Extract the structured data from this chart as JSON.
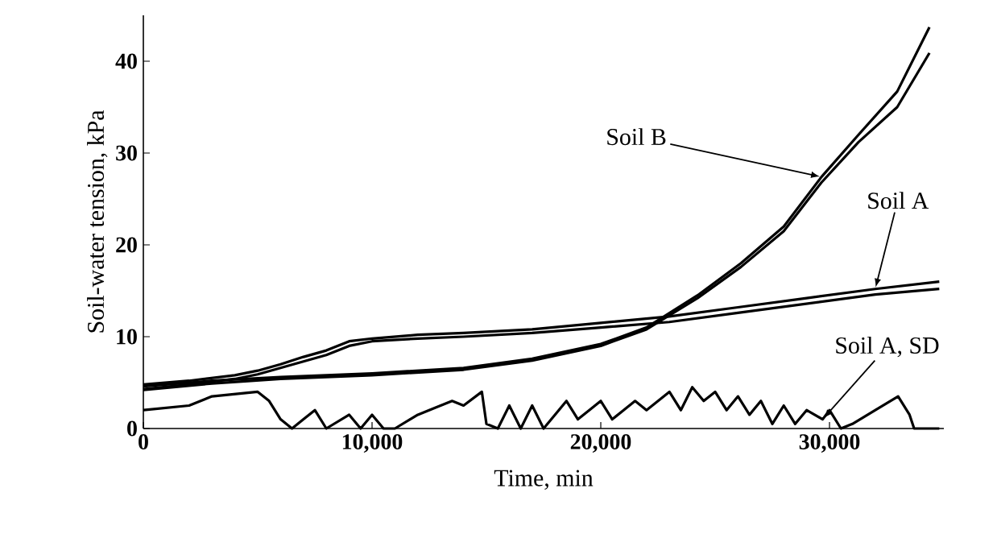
{
  "chart_data": {
    "type": "line",
    "xlabel": "Time, min",
    "ylabel": "Soil-water tension, kPa",
    "xlim": [
      0,
      35000
    ],
    "ylim": [
      0,
      45
    ],
    "xticks": [
      0,
      {
        "value": 10000,
        "label": "10,000"
      },
      {
        "value": 20000,
        "label": "20,000"
      },
      {
        "value": 30000,
        "label": "30,000"
      }
    ],
    "yticks": [
      0,
      10,
      20,
      30,
      40
    ],
    "grid": false,
    "marker": "none",
    "line_style": "solid",
    "series": [
      {
        "color": "#000000",
        "x": [
          0,
          2000,
          4000,
          5000,
          6000,
          7000,
          8000,
          9000,
          10000,
          12000,
          14000,
          17000,
          20000,
          23000,
          26000,
          29000,
          32000,
          34800
        ],
        "values": [
          4.8,
          5.2,
          5.8,
          6.3,
          7,
          7.8,
          8.5,
          9.5,
          9.8,
          10.2,
          10.4,
          10.8,
          11.5,
          12.2,
          13.2,
          14.2,
          15.2,
          16
        ]
      },
      {
        "color": "#000000",
        "x": [
          0,
          2000,
          4000,
          5000,
          6000,
          7000,
          8000,
          9000,
          10000,
          12000,
          14000,
          17000,
          20000,
          23000,
          26000,
          29000,
          32000,
          34800
        ],
        "values": [
          4.3,
          4.8,
          5.4,
          5.9,
          6.6,
          7.3,
          8,
          9,
          9.5,
          9.8,
          10,
          10.4,
          11,
          11.6,
          12.6,
          13.6,
          14.6,
          15.2
        ]
      },
      {
        "color": "#000000",
        "x": [
          0,
          3000,
          6000,
          10000,
          14000,
          17000,
          20000,
          22000,
          24230,
          26130,
          28000,
          29650,
          31270,
          32960,
          34370
        ],
        "values": [
          4.6,
          5.2,
          5.6,
          6,
          6.6,
          7.6,
          9.2,
          11,
          14.5,
          18,
          22,
          27.4,
          32,
          36.7,
          43.7
        ]
      },
      {
        "color": "#000000",
        "x": [
          0,
          3000,
          6000,
          10000,
          14000,
          17000,
          20000,
          22000,
          24230,
          26130,
          28000,
          29650,
          31270,
          32960,
          34370
        ],
        "values": [
          4.2,
          4.9,
          5.4,
          5.8,
          6.4,
          7.4,
          9,
          10.8,
          14.2,
          17.6,
          21.5,
          26.8,
          31.2,
          35,
          40.9
        ]
      },
      {
        "color": "#000000",
        "x": [
          0,
          2000,
          3000,
          5000,
          5500,
          6000,
          6500,
          7000,
          7500,
          8000,
          9000,
          9500,
          10000,
          10500,
          11000,
          12000,
          13500,
          14000,
          14800,
          15000,
          15500,
          16000,
          16500,
          17000,
          17500,
          18500,
          19000,
          20000,
          20500,
          21500,
          22000,
          23000,
          23500,
          24000,
          24500,
          25000,
          25500,
          26000,
          26500,
          27000,
          27500,
          28000,
          28500,
          29000,
          29700,
          30000,
          30500,
          31000,
          32000,
          33000,
          33500,
          33700,
          34800
        ],
        "values": [
          2,
          2.5,
          3.5,
          4,
          3,
          1,
          0,
          1,
          2,
          0,
          1.5,
          0,
          1.5,
          0,
          0,
          1.5,
          3,
          2.5,
          4,
          0.5,
          0,
          2.5,
          0,
          2.5,
          0,
          3,
          1,
          3,
          1,
          3,
          2,
          4,
          2,
          4.5,
          3,
          4,
          2,
          3.5,
          1.5,
          3,
          0.5,
          2.5,
          0.5,
          2,
          1,
          2,
          0,
          0.5,
          2,
          3.5,
          1.5,
          0,
          0
        ]
      }
    ],
    "annotations": [
      {
        "text": "Soil B",
        "x": 29650,
        "y": 27.4
      },
      {
        "text": "Soil A",
        "x": 32000,
        "y": 15.2
      },
      {
        "text": "Soil A, SD",
        "x": 29700,
        "y": 1
      }
    ]
  }
}
